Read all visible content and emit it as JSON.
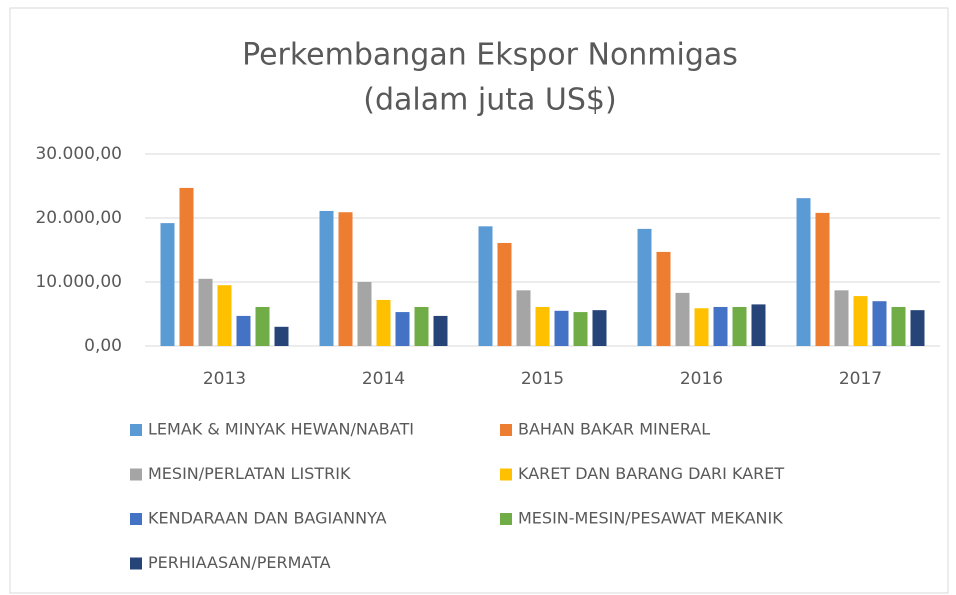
{
  "chart_data": {
    "type": "bar",
    "title": "Perkembangan Ekspor Nonmigas",
    "subtitle": "(dalam juta US$)",
    "categories": [
      "2013",
      "2014",
      "2015",
      "2016",
      "2017"
    ],
    "series": [
      {
        "name": "LEMAK & MINYAK HEWAN/NABATI",
        "color": "#5B9BD5",
        "values": [
          19200,
          21100,
          18700,
          18300,
          23100
        ]
      },
      {
        "name": "BAHAN BAKAR MINERAL",
        "color": "#ED7D31",
        "values": [
          24700,
          20900,
          16100,
          14700,
          20800
        ]
      },
      {
        "name": "MESIN/PERLATAN LISTRIK",
        "color": "#A5A5A5",
        "values": [
          10500,
          10000,
          8700,
          8300,
          8700
        ]
      },
      {
        "name": "KARET DAN BARANG DARI KARET",
        "color": "#FFC000",
        "values": [
          9500,
          7200,
          6100,
          5900,
          7800
        ]
      },
      {
        "name": "KENDARAAN DAN BAGIANNYA",
        "color": "#4472C4",
        "values": [
          4700,
          5300,
          5500,
          6100,
          7000
        ]
      },
      {
        "name": "MESIN-MESIN/PESAWAT MEKANIK",
        "color": "#70AD47",
        "values": [
          6100,
          6100,
          5300,
          6100,
          6100
        ]
      },
      {
        "name": "PERHIAASAN/PERMATA",
        "color": "#264478",
        "values": [
          3000,
          4700,
          5600,
          6500,
          5600
        ]
      }
    ],
    "ylim": [
      0,
      30000
    ],
    "yticks": [
      {
        "value": 0,
        "label": "0,00"
      },
      {
        "value": 10000,
        "label": "10.000,00"
      },
      {
        "value": 20000,
        "label": "20.000,00"
      },
      {
        "value": 30000,
        "label": "30.000,00"
      }
    ],
    "grid": true,
    "legend": "bottom"
  }
}
